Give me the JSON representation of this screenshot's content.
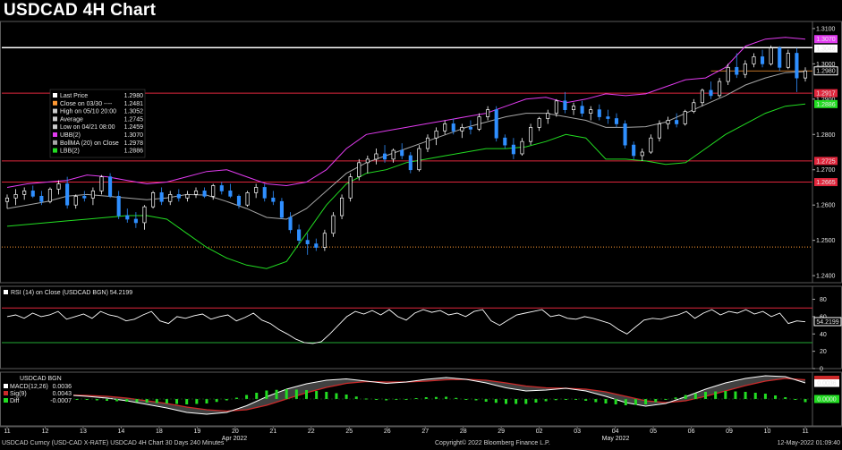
{
  "title": "USDCAD 4H Chart",
  "footer": {
    "left": "USDCAD Curncy (USD-CAD X-RATE) USDCAD 4H Chart 30 Days 240 Minutes",
    "center": "Copyright© 2022 Bloomberg Finance L.P.",
    "right": "12-May-2022 01:09:40"
  },
  "colors": {
    "background": "#000000",
    "up_candle": "#ffffff",
    "down_candle": "#2f8fff",
    "upper_band": "#e23bf0",
    "middle_band": "#a6a6a6",
    "lower_band": "#22dd22",
    "red_line": "#e0263c",
    "last_price_line": "#ffffff",
    "low_line": "#ff9933",
    "rsi_line": "#ffffff",
    "rsi_70": "#e0263c",
    "rsi_30": "#22aa33",
    "macd": "#ffffff",
    "signal": "#cc2a2a",
    "hist": "#22dd22"
  },
  "x_axis": {
    "day_labels": [
      "11",
      "12",
      "13",
      "14",
      "18",
      "19",
      "20",
      "21",
      "22",
      "25",
      "26",
      "27",
      "28",
      "29",
      "02",
      "03",
      "04",
      "05",
      "06",
      "09",
      "10",
      "11"
    ],
    "month_labels": [
      "Apr 2022",
      "May 2022"
    ]
  },
  "chart_data": [
    {
      "type": "candlestick",
      "name": "price",
      "ylim": [
        1.238,
        1.312
      ],
      "y_ticks": [
        "1.3100",
        "1.3000",
        "1.2900",
        "1.2800",
        "1.2700",
        "1.2600",
        "1.2500",
        "1.2400"
      ],
      "price_tags": [
        {
          "label": "1.3070",
          "style": "upper"
        },
        {
          "label": "1.3046",
          "style": "white"
        },
        {
          "label": "1.2980",
          "style": "last"
        },
        {
          "label": "1.2917",
          "style": "red"
        },
        {
          "label": "1.2886",
          "style": "lower"
        },
        {
          "label": "1.2725",
          "style": "red"
        },
        {
          "label": "1.2665",
          "style": "red"
        }
      ],
      "levels": {
        "white_line": 1.3046,
        "red_lines": [
          1.2917,
          1.2725,
          1.2665
        ],
        "low_dotted": 1.2481,
        "last_dotted": 1.298
      },
      "legend": [
        {
          "marker": "#ffffff",
          "label": "Last Price",
          "value": "1.2980"
        },
        {
          "marker": "#ff9933",
          "label": "Close on 03/30 ----",
          "value": "1.2481"
        },
        {
          "marker": "#cccccc",
          "label": "High on 05/10 20:00",
          "value": "1.3052"
        },
        {
          "marker": "#cccccc",
          "label": "Average",
          "value": "1.2745"
        },
        {
          "marker": "#cccccc",
          "label": "Low on 04/21 08:00",
          "value": "1.2459"
        },
        {
          "marker": "#e23bf0",
          "label": "UBB(2)",
          "value": "1.3070"
        },
        {
          "marker": "#a6a6a6",
          "label": "BollMA (20)  on Close",
          "value": "1.2978"
        },
        {
          "marker": "#22dd22",
          "label": "LBB(2)",
          "value": "1.2886"
        }
      ],
      "candles": [
        [
          1.261,
          1.263,
          1.259,
          1.262
        ],
        [
          1.262,
          1.2645,
          1.26,
          1.263
        ],
        [
          1.263,
          1.265,
          1.2615,
          1.264
        ],
        [
          1.264,
          1.2655,
          1.262,
          1.2625
        ],
        [
          1.2625,
          1.264,
          1.26,
          1.261
        ],
        [
          1.261,
          1.265,
          1.2605,
          1.2645
        ],
        [
          1.2645,
          1.267,
          1.263,
          1.266
        ],
        [
          1.266,
          1.268,
          1.259,
          1.26
        ],
        [
          1.26,
          1.263,
          1.259,
          1.2625
        ],
        [
          1.2625,
          1.264,
          1.261,
          1.262
        ],
        [
          1.262,
          1.265,
          1.26,
          1.264
        ],
        [
          1.264,
          1.2685,
          1.263,
          1.268
        ],
        [
          1.268,
          1.269,
          1.262,
          1.2625
        ],
        [
          1.2625,
          1.264,
          1.256,
          1.257
        ],
        [
          1.257,
          1.259,
          1.255,
          1.256
        ],
        [
          1.256,
          1.258,
          1.2535,
          1.255
        ],
        [
          1.255,
          1.26,
          1.253,
          1.2595
        ],
        [
          1.2595,
          1.264,
          1.259,
          1.2635
        ],
        [
          1.2635,
          1.265,
          1.26,
          1.261
        ],
        [
          1.261,
          1.264,
          1.26,
          1.263
        ],
        [
          1.263,
          1.2645,
          1.261,
          1.262
        ],
        [
          1.262,
          1.264,
          1.261,
          1.263
        ],
        [
          1.263,
          1.265,
          1.262,
          1.264
        ],
        [
          1.264,
          1.265,
          1.262,
          1.2625
        ],
        [
          1.2625,
          1.266,
          1.2615,
          1.2655
        ],
        [
          1.2655,
          1.2665,
          1.263,
          1.264
        ],
        [
          1.264,
          1.266,
          1.262,
          1.2625
        ],
        [
          1.2625,
          1.263,
          1.259,
          1.26
        ],
        [
          1.26,
          1.264,
          1.2595,
          1.2635
        ],
        [
          1.2635,
          1.266,
          1.262,
          1.265
        ],
        [
          1.265,
          1.266,
          1.261,
          1.262
        ],
        [
          1.262,
          1.264,
          1.26,
          1.261
        ],
        [
          1.261,
          1.262,
          1.256,
          1.2565
        ],
        [
          1.2565,
          1.258,
          1.252,
          1.253
        ],
        [
          1.253,
          1.2545,
          1.249,
          1.25
        ],
        [
          1.25,
          1.252,
          1.2459,
          1.249
        ],
        [
          1.249,
          1.2505,
          1.247,
          1.248
        ],
        [
          1.248,
          1.253,
          1.247,
          1.252
        ],
        [
          1.252,
          1.258,
          1.251,
          1.257
        ],
        [
          1.257,
          1.263,
          1.256,
          1.262
        ],
        [
          1.262,
          1.269,
          1.261,
          1.268
        ],
        [
          1.268,
          1.273,
          1.267,
          1.272
        ],
        [
          1.272,
          1.274,
          1.269,
          1.273
        ],
        [
          1.273,
          1.276,
          1.2715,
          1.2745
        ],
        [
          1.2745,
          1.277,
          1.272,
          1.273
        ],
        [
          1.273,
          1.276,
          1.272,
          1.2755
        ],
        [
          1.2755,
          1.2775,
          1.273,
          1.274
        ],
        [
          1.274,
          1.275,
          1.269,
          1.27
        ],
        [
          1.27,
          1.277,
          1.2695,
          1.276
        ],
        [
          1.276,
          1.28,
          1.275,
          1.279
        ],
        [
          1.279,
          1.282,
          1.277,
          1.281
        ],
        [
          1.281,
          1.284,
          1.28,
          1.283
        ],
        [
          1.283,
          1.2845,
          1.28,
          1.281
        ],
        [
          1.281,
          1.283,
          1.279,
          1.282
        ],
        [
          1.282,
          1.284,
          1.28,
          1.2815
        ],
        [
          1.2815,
          1.286,
          1.281,
          1.285
        ],
        [
          1.285,
          1.288,
          1.284,
          1.287
        ],
        [
          1.287,
          1.288,
          1.278,
          1.279
        ],
        [
          1.279,
          1.28,
          1.276,
          1.277
        ],
        [
          1.277,
          1.279,
          1.273,
          1.2745
        ],
        [
          1.2745,
          1.279,
          1.274,
          1.278
        ],
        [
          1.278,
          1.283,
          1.277,
          1.282
        ],
        [
          1.282,
          1.285,
          1.281,
          1.2845
        ],
        [
          1.2845,
          1.287,
          1.283,
          1.286
        ],
        [
          1.286,
          1.29,
          1.285,
          1.2895
        ],
        [
          1.2895,
          1.292,
          1.286,
          1.287
        ],
        [
          1.287,
          1.289,
          1.2855,
          1.288
        ],
        [
          1.288,
          1.2895,
          1.285,
          1.286
        ],
        [
          1.286,
          1.288,
          1.284,
          1.287
        ],
        [
          1.287,
          1.2885,
          1.284,
          1.285
        ],
        [
          1.285,
          1.287,
          1.283,
          1.2845
        ],
        [
          1.2845,
          1.286,
          1.282,
          1.283
        ],
        [
          1.283,
          1.284,
          1.276,
          1.277
        ],
        [
          1.277,
          1.278,
          1.273,
          1.274
        ],
        [
          1.274,
          1.276,
          1.2725,
          1.275
        ],
        [
          1.275,
          1.28,
          1.2745,
          1.279
        ],
        [
          1.279,
          1.284,
          1.278,
          1.283
        ],
        [
          1.283,
          1.285,
          1.2815,
          1.284
        ],
        [
          1.284,
          1.286,
          1.282,
          1.283
        ],
        [
          1.283,
          1.287,
          1.2825,
          1.2865
        ],
        [
          1.2865,
          1.29,
          1.286,
          1.289
        ],
        [
          1.289,
          1.293,
          1.288,
          1.2925
        ],
        [
          1.2925,
          1.295,
          1.29,
          1.291
        ],
        [
          1.291,
          1.296,
          1.2905,
          1.295
        ],
        [
          1.295,
          1.3,
          1.294,
          1.299
        ],
        [
          1.299,
          1.303,
          1.296,
          1.297
        ],
        [
          1.297,
          1.301,
          1.296,
          1.3
        ],
        [
          1.3,
          1.303,
          1.299,
          1.302
        ],
        [
          1.302,
          1.304,
          1.299,
          1.3
        ],
        [
          1.3,
          1.3052,
          1.2995,
          1.3045
        ],
        [
          1.3045,
          1.305,
          1.298,
          1.299
        ],
        [
          1.299,
          1.304,
          1.2985,
          1.303
        ],
        [
          1.303,
          1.3045,
          1.292,
          1.296
        ],
        [
          1.296,
          1.299,
          1.295,
          1.298
        ]
      ],
      "bollinger": {
        "upper": [
          1.265,
          1.266,
          1.2665,
          1.267,
          1.2685,
          1.268,
          1.267,
          1.266,
          1.2665,
          1.268,
          1.2695,
          1.27,
          1.268,
          1.266,
          1.2655,
          1.2665,
          1.27,
          1.276,
          1.28,
          1.281,
          1.282,
          1.283,
          1.284,
          1.285,
          1.286,
          1.288,
          1.29,
          1.2905,
          1.289,
          1.29,
          1.2915,
          1.291,
          1.2915,
          1.2935,
          1.2955,
          1.296,
          1.299,
          1.305,
          1.307,
          1.3075,
          1.307
        ],
        "middle": [
          1.259,
          1.26,
          1.261,
          1.2625,
          1.263,
          1.2625,
          1.262,
          1.2615,
          1.262,
          1.263,
          1.2628,
          1.261,
          1.259,
          1.2565,
          1.256,
          1.259,
          1.264,
          1.269,
          1.272,
          1.274,
          1.276,
          1.278,
          1.28,
          1.282,
          1.2835,
          1.285,
          1.286,
          1.286,
          1.285,
          1.284,
          1.282,
          1.282,
          1.2822,
          1.2835,
          1.286,
          1.2885,
          1.291,
          1.294,
          1.296,
          1.2975,
          1.2978
        ],
        "lower": [
          1.254,
          1.2545,
          1.255,
          1.2555,
          1.256,
          1.2565,
          1.257,
          1.257,
          1.256,
          1.252,
          1.248,
          1.245,
          1.243,
          1.242,
          1.244,
          1.252,
          1.26,
          1.266,
          1.269,
          1.27,
          1.272,
          1.273,
          1.274,
          1.275,
          1.276,
          1.276,
          1.2765,
          1.278,
          1.28,
          1.279,
          1.273,
          1.273,
          1.2725,
          1.2715,
          1.272,
          1.276,
          1.28,
          1.283,
          1.286,
          1.288,
          1.2886
        ]
      }
    },
    {
      "type": "line",
      "name": "RSI (14)  on Close (USDCAD BGN) 54.2199",
      "ylim": [
        0,
        95
      ],
      "y_ticks": [
        "80",
        "60",
        "40",
        "20",
        "0"
      ],
      "levels": [
        70,
        30
      ],
      "tag": "54.2199",
      "values": [
        60,
        62,
        58,
        64,
        60,
        62,
        66,
        57,
        60,
        63,
        58,
        66,
        62,
        60,
        55,
        57,
        62,
        66,
        55,
        52,
        60,
        58,
        61,
        63,
        57,
        60,
        62,
        55,
        59,
        64,
        56,
        52,
        45,
        40,
        34,
        30,
        29,
        31,
        40,
        50,
        60,
        66,
        63,
        67,
        62,
        68,
        60,
        56,
        64,
        68,
        65,
        67,
        62,
        64,
        60,
        66,
        68,
        55,
        50,
        56,
        62,
        64,
        66,
        68,
        60,
        62,
        58,
        57,
        60,
        58,
        55,
        52,
        45,
        40,
        48,
        56,
        58,
        57,
        60,
        62,
        66,
        58,
        64,
        68,
        62,
        66,
        64,
        68,
        63,
        66,
        60,
        64,
        52,
        55,
        54
      ]
    },
    {
      "type": "line",
      "name": "USDCAD BGN",
      "ylim": [
        -0.006,
        0.006
      ],
      "legend": [
        {
          "marker": "#ffffff",
          "label": "MACD(12,26)",
          "value": "0.0036"
        },
        {
          "marker": "#cc2a2a",
          "label": "Sig(9)",
          "value": "0.0043"
        },
        {
          "marker": "#22dd22",
          "label": "Diff",
          "value": "-0.0007"
        }
      ],
      "tags": [
        "0.0036",
        "0.0000"
      ],
      "macd": [
        0.0008,
        0.001,
        0.001,
        0.0009,
        0.0006,
        0.0002,
        -0.0004,
        -0.0012,
        -0.002,
        -0.003,
        -0.0034,
        -0.003,
        -0.0015,
        0.0005,
        0.0022,
        0.0034,
        0.0042,
        0.0045,
        0.004,
        0.0035,
        0.0038,
        0.0044,
        0.0048,
        0.0044,
        0.0036,
        0.0025,
        0.0018,
        0.002,
        0.0024,
        0.0018,
        0.0006,
        -0.0008,
        -0.0016,
        -0.001,
        0.0005,
        0.0022,
        0.0036,
        0.0046,
        0.0052,
        0.005,
        0.0036
      ],
      "signal": [
        0.0004,
        0.0006,
        0.0008,
        0.0009,
        0.0008,
        0.0006,
        0.0002,
        -0.0004,
        -0.001,
        -0.0018,
        -0.0024,
        -0.0027,
        -0.0024,
        -0.0014,
        0.0,
        0.0014,
        0.0026,
        0.0035,
        0.0039,
        0.0038,
        0.0038,
        0.004,
        0.0043,
        0.0044,
        0.0042,
        0.0036,
        0.0029,
        0.0025,
        0.0024,
        0.0022,
        0.0016,
        0.0006,
        -0.0004,
        -0.0008,
        -0.0004,
        0.0006,
        0.0018,
        0.003,
        0.004,
        0.0046,
        0.0043
      ]
    }
  ]
}
